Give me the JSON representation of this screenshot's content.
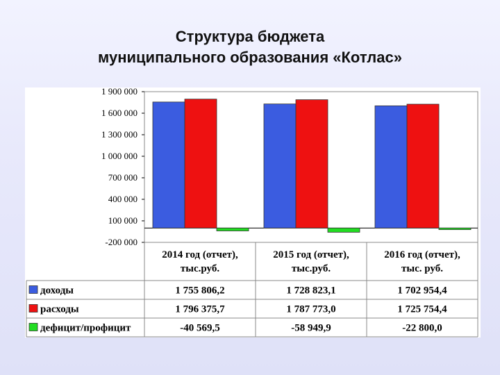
{
  "title_line1": "Структура бюджета",
  "title_line2": "муниципального образования «Котлас»",
  "colors": {
    "income": "#3b5ce0",
    "expense": "#ee1111",
    "deficit": "#22dd22"
  },
  "chart_data": {
    "type": "bar",
    "title": "Структура бюджета муниципального образования «Котлас»",
    "categories_lines": [
      [
        "2014 год (отчет),",
        "тыс.руб."
      ],
      [
        "2015 год (отчет),",
        "тыс.руб."
      ],
      [
        "2016 год (отчет),",
        "тыс. руб."
      ]
    ],
    "series": [
      {
        "name": "доходы",
        "values": [
          1755806.2,
          1728823.1,
          1702954.4
        ],
        "labels": [
          "1 755 806,2",
          "1 728 823,1",
          "1 702 954,4"
        ],
        "color": "#3b5ce0"
      },
      {
        "name": "расходы",
        "values": [
          1796375.7,
          1787773.0,
          1725754.4
        ],
        "labels": [
          "1 796 375,7",
          "1 787 773,0",
          "1 725 754,4"
        ],
        "color": "#ee1111"
      },
      {
        "name": "дефицит/профицит",
        "values": [
          -40569.5,
          -58949.9,
          -22800.0
        ],
        "labels": [
          "-40 569,5",
          "-58 949,9",
          "-22 800,0"
        ],
        "color": "#22dd22"
      }
    ],
    "yticks": [
      1900000,
      1600000,
      1300000,
      1000000,
      700000,
      400000,
      100000,
      -200000
    ],
    "ytick_labels": [
      "1 900 000",
      "1 600 000",
      "1 300 000",
      "1 000 000",
      "700 000",
      "400 000",
      "100 000",
      "-200 000"
    ],
    "ylim": [
      -200000,
      1900000
    ],
    "grid": true,
    "legend": "data-table-left"
  }
}
